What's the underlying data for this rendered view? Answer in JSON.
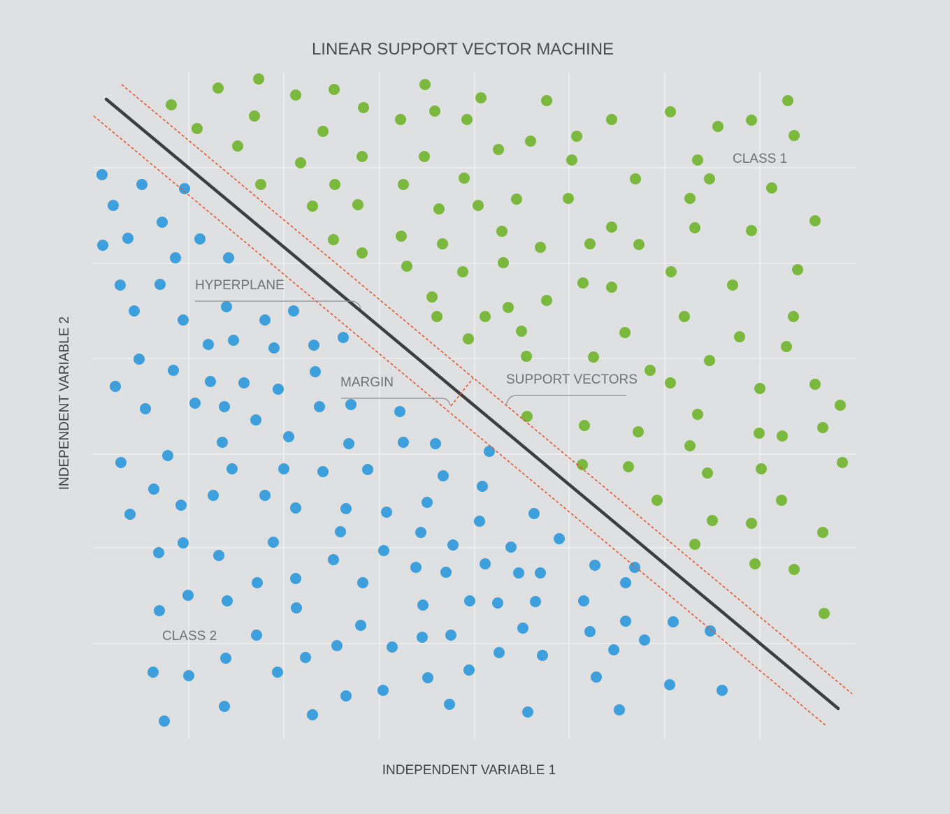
{
  "title": "LINEAR SUPPORT VECTOR MACHINE",
  "xlabel": "INDEPENDENT VARIABLE 1",
  "ylabel": "INDEPENDENT VARIABLE 2",
  "labels": {
    "class1": "CLASS 1",
    "class2": "CLASS 2",
    "hyperplane": "HYPERPLANE",
    "margin": "MARGIN",
    "support_vectors": "SUPPORT VECTORS"
  },
  "colors": {
    "class1": "#7ab83e",
    "class2": "#3d9fdb",
    "hyperplane": "#3d3e40",
    "margin": "#e8542c",
    "background": "#dfe0e1",
    "grid": "#f4f4f4"
  },
  "chart_data": {
    "type": "scatter",
    "title": "LINEAR SUPPORT VECTOR MACHINE",
    "xlabel": "INDEPENDENT VARIABLE 1",
    "ylabel": "INDEPENDENT VARIABLE 2",
    "grid": true,
    "series": [
      {
        "name": "CLASS 1",
        "color": "#7ab83e",
        "points": [
          [
            245,
            150
          ],
          [
            312,
            126
          ],
          [
            370,
            113
          ],
          [
            423,
            136
          ],
          [
            478,
            128
          ],
          [
            608,
            121
          ],
          [
            282,
            184
          ],
          [
            364,
            166
          ],
          [
            340,
            209
          ],
          [
            520,
            154
          ],
          [
            573,
            171
          ],
          [
            622,
            159
          ],
          [
            668,
            171
          ],
          [
            688,
            140
          ],
          [
            782,
            144
          ],
          [
            462,
            188
          ],
          [
            430,
            233
          ],
          [
            518,
            224
          ],
          [
            607,
            224
          ],
          [
            713,
            214
          ],
          [
            759,
            202
          ],
          [
            825,
            195
          ],
          [
            818,
            229
          ],
          [
            875,
            171
          ],
          [
            959,
            160
          ],
          [
            1027,
            181
          ],
          [
            1075,
            172
          ],
          [
            1127,
            144
          ],
          [
            1136,
            194
          ],
          [
            998,
            229
          ],
          [
            373,
            264
          ],
          [
            479,
            264
          ],
          [
            577,
            264
          ],
          [
            664,
            255
          ],
          [
            447,
            295
          ],
          [
            512,
            293
          ],
          [
            628,
            299
          ],
          [
            684,
            294
          ],
          [
            739,
            285
          ],
          [
            813,
            284
          ],
          [
            909,
            256
          ],
          [
            1015,
            256
          ],
          [
            987,
            284
          ],
          [
            1104,
            269
          ],
          [
            477,
            343
          ],
          [
            518,
            362
          ],
          [
            574,
            338
          ],
          [
            633,
            349
          ],
          [
            718,
            331
          ],
          [
            773,
            354
          ],
          [
            844,
            349
          ],
          [
            875,
            325
          ],
          [
            914,
            350
          ],
          [
            994,
            326
          ],
          [
            1075,
            330
          ],
          [
            1166,
            316
          ],
          [
            582,
            381
          ],
          [
            662,
            389
          ],
          [
            720,
            376
          ],
          [
            960,
            389
          ],
          [
            1141,
            386
          ],
          [
            834,
            405
          ],
          [
            875,
            411
          ],
          [
            1048,
            408
          ],
          [
            618,
            425
          ],
          [
            625,
            453
          ],
          [
            694,
            453
          ],
          [
            727,
            440
          ],
          [
            782,
            430
          ],
          [
            746,
            474
          ],
          [
            894,
            476
          ],
          [
            979,
            453
          ],
          [
            1135,
            453
          ],
          [
            670,
            485
          ],
          [
            753,
            510
          ],
          [
            849,
            511
          ],
          [
            1015,
            516
          ],
          [
            1058,
            482
          ],
          [
            1125,
            496
          ],
          [
            930,
            530
          ],
          [
            959,
            548
          ],
          [
            1087,
            556
          ],
          [
            1166,
            550
          ],
          [
            1202,
            580
          ],
          [
            998,
            593
          ],
          [
            754,
            596
          ],
          [
            836,
            609
          ],
          [
            913,
            618
          ],
          [
            987,
            638
          ],
          [
            1086,
            620
          ],
          [
            1119,
            624
          ],
          [
            1177,
            612
          ],
          [
            833,
            665
          ],
          [
            899,
            668
          ],
          [
            1012,
            677
          ],
          [
            1089,
            671
          ],
          [
            1205,
            662
          ],
          [
            940,
            716
          ],
          [
            1118,
            716
          ],
          [
            1019,
            745
          ],
          [
            1075,
            749
          ],
          [
            994,
            779
          ],
          [
            1177,
            762
          ],
          [
            1080,
            807
          ],
          [
            1136,
            815
          ],
          [
            1179,
            878
          ]
        ]
      },
      {
        "name": "CLASS 2",
        "color": "#3d9fdb",
        "points": [
          [
            146,
            250
          ],
          [
            203,
            264
          ],
          [
            264,
            270
          ],
          [
            162,
            294
          ],
          [
            232,
            318
          ],
          [
            147,
            351
          ],
          [
            183,
            341
          ],
          [
            251,
            369
          ],
          [
            286,
            342
          ],
          [
            327,
            369
          ],
          [
            172,
            408
          ],
          [
            229,
            407
          ],
          [
            192,
            445
          ],
          [
            262,
            458
          ],
          [
            324,
            439
          ],
          [
            379,
            458
          ],
          [
            420,
            445
          ],
          [
            298,
            493
          ],
          [
            334,
            487
          ],
          [
            392,
            498
          ],
          [
            449,
            494
          ],
          [
            491,
            483
          ],
          [
            199,
            514
          ],
          [
            248,
            530
          ],
          [
            165,
            553
          ],
          [
            301,
            546
          ],
          [
            349,
            548
          ],
          [
            398,
            557
          ],
          [
            451,
            532
          ],
          [
            208,
            585
          ],
          [
            279,
            577
          ],
          [
            321,
            582
          ],
          [
            366,
            601
          ],
          [
            457,
            582
          ],
          [
            502,
            579
          ],
          [
            572,
            589
          ],
          [
            318,
            633
          ],
          [
            413,
            625
          ],
          [
            499,
            635
          ],
          [
            577,
            633
          ],
          [
            623,
            635
          ],
          [
            700,
            646
          ],
          [
            173,
            662
          ],
          [
            240,
            652
          ],
          [
            332,
            671
          ],
          [
            406,
            671
          ],
          [
            462,
            675
          ],
          [
            526,
            672
          ],
          [
            634,
            681
          ],
          [
            220,
            700
          ],
          [
            259,
            723
          ],
          [
            305,
            709
          ],
          [
            379,
            709
          ],
          [
            423,
            727
          ],
          [
            495,
            728
          ],
          [
            553,
            733
          ],
          [
            611,
            719
          ],
          [
            690,
            696
          ],
          [
            186,
            736
          ],
          [
            227,
            791
          ],
          [
            262,
            777
          ],
          [
            313,
            795
          ],
          [
            391,
            776
          ],
          [
            487,
            761
          ],
          [
            549,
            788
          ],
          [
            602,
            762
          ],
          [
            648,
            780
          ],
          [
            686,
            746
          ],
          [
            731,
            783
          ],
          [
            764,
            735
          ],
          [
            800,
            771
          ],
          [
            477,
            801
          ],
          [
            595,
            812
          ],
          [
            638,
            819
          ],
          [
            694,
            807
          ],
          [
            742,
            820
          ],
          [
            773,
            820
          ],
          [
            851,
            809
          ],
          [
            895,
            834
          ],
          [
            908,
            812
          ],
          [
            228,
            874
          ],
          [
            269,
            852
          ],
          [
            325,
            860
          ],
          [
            368,
            834
          ],
          [
            423,
            828
          ],
          [
            519,
            834
          ],
          [
            605,
            866
          ],
          [
            672,
            860
          ],
          [
            712,
            863
          ],
          [
            766,
            861
          ],
          [
            835,
            860
          ],
          [
            424,
            870
          ],
          [
            367,
            909
          ],
          [
            516,
            895
          ],
          [
            604,
            912
          ],
          [
            645,
            909
          ],
          [
            748,
            899
          ],
          [
            844,
            904
          ],
          [
            895,
            889
          ],
          [
            922,
            916
          ],
          [
            963,
            890
          ],
          [
            1016,
            903
          ],
          [
            219,
            962
          ],
          [
            270,
            967
          ],
          [
            323,
            942
          ],
          [
            397,
            962
          ],
          [
            437,
            941
          ],
          [
            482,
            924
          ],
          [
            561,
            926
          ],
          [
            714,
            934
          ],
          [
            776,
            938
          ],
          [
            878,
            930
          ],
          [
            612,
            970
          ],
          [
            671,
            959
          ],
          [
            853,
            969
          ],
          [
            958,
            980
          ],
          [
            1033,
            988
          ],
          [
            235,
            1032
          ],
          [
            321,
            1011
          ],
          [
            447,
            1023
          ],
          [
            495,
            996
          ],
          [
            548,
            988
          ],
          [
            643,
            1008
          ],
          [
            755,
            1019
          ],
          [
            886,
            1016
          ]
        ]
      }
    ],
    "hyperplane": {
      "x1": 152,
      "y1": 142,
      "x2": 1199,
      "y2": 1014
    },
    "margin_lines": [
      {
        "x1": 174,
        "y1": 121,
        "x2": 1219,
        "y2": 993
      },
      {
        "x1": 134,
        "y1": 166,
        "x2": 1181,
        "y2": 1038
      }
    ]
  }
}
